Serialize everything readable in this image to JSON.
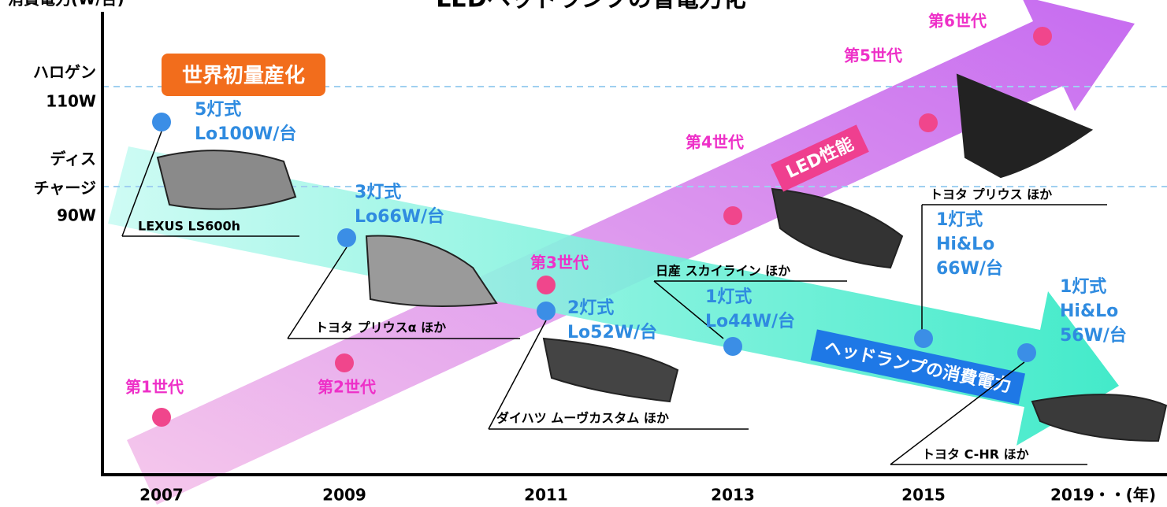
{
  "title": "LEDヘッドランプの省電力化",
  "y_axis_label": "消費電力(W/台)",
  "y_labels": [
    {
      "lines": [
        "ハロゲン",
        "110W"
      ]
    },
    {
      "lines": [
        "ディス",
        "チャージ",
        "90W"
      ]
    }
  ],
  "x_labels": [
    "2007",
    "2009",
    "2011",
    "2013",
    "2015",
    "2019・・(年)"
  ],
  "badge": "世界初量産化",
  "arrows": {
    "led": "LED性能",
    "power": "ヘッドランプの消費電力"
  },
  "generations": [
    "第1世代",
    "第2世代",
    "第3世代",
    "第4世代",
    "第5世代",
    "第6世代"
  ],
  "lamps": [
    {
      "spec": [
        "5灯式",
        "Lo100W/台"
      ],
      "model": "LEXUS LS600h"
    },
    {
      "spec": [
        "3灯式",
        "Lo66W/台"
      ],
      "model": "トヨタ プリウスα ほか"
    },
    {
      "spec": [
        "2灯式",
        "Lo52W/台"
      ],
      "model": "ダイハツ ムーヴカスタム ほか"
    },
    {
      "spec": [
        "1灯式",
        "Lo44W/台"
      ],
      "model": "日産 スカイライン ほか"
    },
    {
      "spec": [
        "1灯式",
        "Hi&Lo",
        "66W/台"
      ],
      "model": "トヨタ プリウス ほか"
    },
    {
      "spec": [
        "1灯式",
        "Hi&Lo",
        "56W/台"
      ],
      "model": "トヨタ C-HR ほか"
    }
  ]
}
